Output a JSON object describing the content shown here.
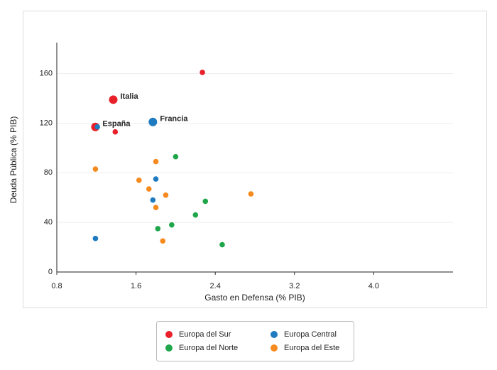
{
  "chart_data": {
    "type": "scatter",
    "xlabel": "Gasto en Defensa (% PIB)",
    "ylabel": "Deuda Pública (% PIB)",
    "xlim": [
      0.8,
      4.8
    ],
    "ylim": [
      0,
      185
    ],
    "xticks": [
      0.8,
      1.6,
      2.4,
      3.2,
      {
        "value": 4,
        "label": "4.0"
      }
    ],
    "yticks": [
      0,
      40,
      80,
      120,
      160
    ],
    "grid": true,
    "series": [
      {
        "name": "Europa del Sur",
        "color": "#e8202a",
        "x": [
          2.27,
          1.37,
          1.19,
          1.39
        ],
        "values": [
          161,
          139,
          117,
          113
        ],
        "labels": [
          "",
          "Italia",
          "España",
          ""
        ]
      },
      {
        "name": "Europa Central",
        "color": "#1f7bbf",
        "x": [
          1.77,
          1.21,
          1.8,
          1.77,
          1.19
        ],
        "values": [
          121,
          117,
          75,
          58,
          27
        ],
        "labels": [
          "Francia",
          "",
          "",
          "",
          ""
        ]
      },
      {
        "name": "Europa del Norte",
        "color": "#1fa64a",
        "x": [
          2.0,
          2.3,
          2.2,
          1.96,
          1.82,
          2.47
        ],
        "values": [
          93,
          57,
          46,
          38,
          35,
          22
        ]
      },
      {
        "name": "Europa del Este",
        "color": "#f58a1f",
        "x": [
          1.8,
          1.19,
          1.63,
          1.73,
          1.9,
          2.76,
          1.8,
          1.87
        ],
        "values": [
          89,
          83,
          74,
          67,
          62,
          63,
          52,
          25
        ]
      }
    ]
  }
}
